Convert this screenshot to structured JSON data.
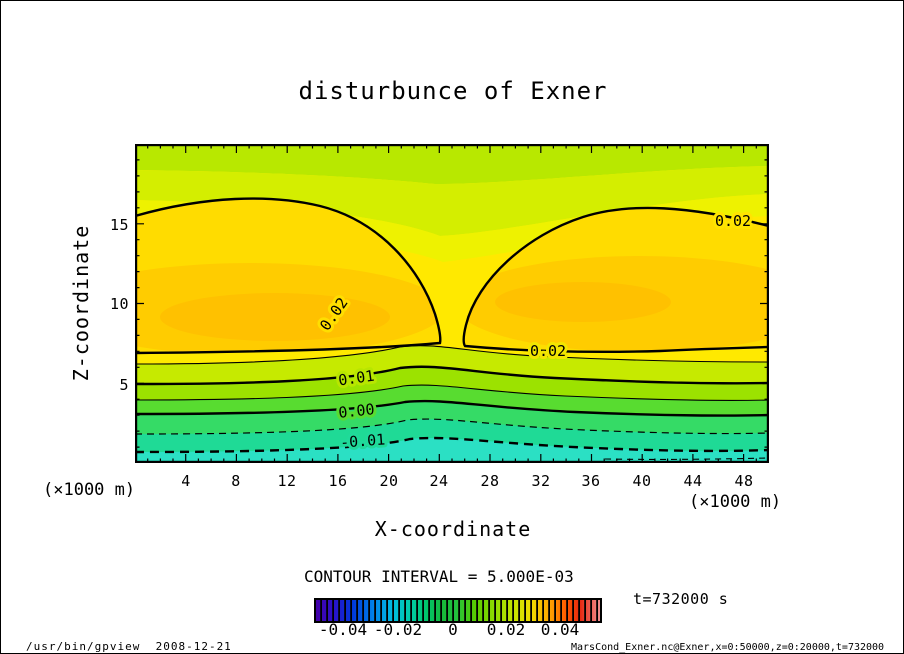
{
  "title": "disturbunce of Exner",
  "axes": {
    "x_label": "X-coordinate",
    "y_label": "Z-coordinate",
    "x_unit_left": "(×1000 m)",
    "x_unit_right": "(×1000 m)",
    "x_ticks": [
      "4",
      "8",
      "12",
      "16",
      "20",
      "24",
      "28",
      "32",
      "36",
      "40",
      "44",
      "48"
    ],
    "y_ticks": [
      "5",
      "10",
      "15"
    ]
  },
  "chart_data": {
    "type": "heatmap",
    "subtype": "filled-contour-section",
    "field": "disturbance of Exner function over x-z plane",
    "x_range_m": [
      0,
      50000
    ],
    "z_range_m": [
      0,
      20000
    ],
    "contour_interval": 0.005,
    "solid_levels": [
      0,
      0.005,
      0.01,
      0.015,
      0.02
    ],
    "dashed_levels": [
      -0.005,
      -0.01
    ],
    "level_heights_km": [
      {
        "level": 0.015,
        "z_at_edges": 6.2,
        "z_at_center_bump": 7.3
      },
      {
        "level": 0.01,
        "z_at_edges": 5.0,
        "z_at_center_bump": 6.0
      },
      {
        "level": 0.005,
        "z_at_edges": 4.0,
        "z_at_center_bump": 4.9
      },
      {
        "level": 0.0,
        "z_at_edges": 3.1,
        "z_at_center_bump": 3.9
      },
      {
        "level": -0.005,
        "z_at_edges": 1.9,
        "z_at_center_bump": 2.7
      },
      {
        "level": -0.01,
        "z_at_edges": 0.7,
        "z_at_center_bump": 1.5
      }
    ],
    "maxima": [
      {
        "x_km": 9,
        "z_km": 10.5,
        "value_approx": 0.028,
        "note": "left 0.02 closed dome"
      },
      {
        "x_km": 33,
        "z_km": 10.0,
        "value_approx": 0.028,
        "note": "right 0.02 closed dome"
      }
    ],
    "contour_labels": {
      "left_dome": "0.02",
      "right_dome": "0.02",
      "right_edge": "0.02",
      "p01": "0.01",
      "p00": "0.00",
      "m01": "-0.01"
    }
  },
  "colorbar": {
    "ticks": [
      "-0.04",
      "-0.02",
      "0",
      "0.02",
      "0.04"
    ]
  },
  "contour_note": "CONTOUR INTERVAL = 5.000E-03",
  "time_label": "t=732000 s",
  "footer": {
    "left": "/usr/bin/gpview  2008-12-21",
    "right": "MarsCond_Exner.nc@Exner,x=0:50000,z=0:20000,t=732000"
  }
}
